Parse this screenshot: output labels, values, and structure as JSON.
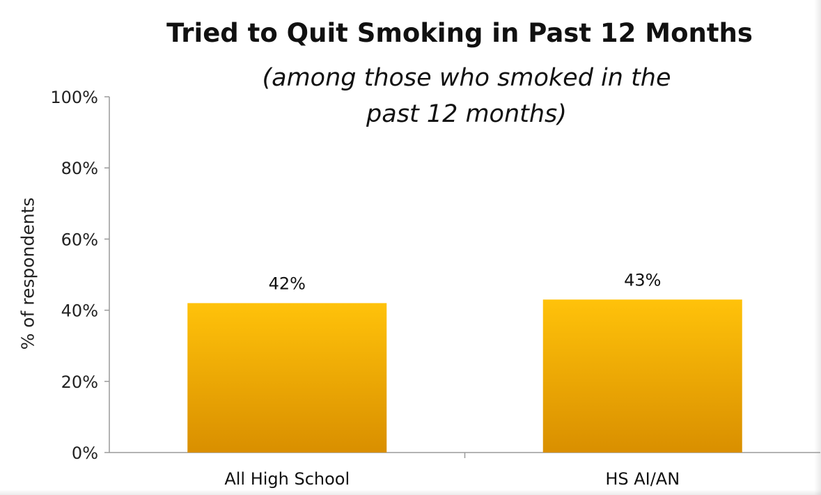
{
  "chart_data": {
    "type": "bar",
    "title": "Tried to Quit Smoking in Past 12 Months",
    "subtitle": "(among those who smoked in the past 12 months)",
    "xlabel": "",
    "ylabel": "% of respondents",
    "categories": [
      "All High School",
      "HS AI/AN"
    ],
    "values": [
      42,
      43
    ],
    "value_labels": [
      "42%",
      "43%"
    ],
    "ylim": [
      0,
      100
    ],
    "yticks": [
      0,
      20,
      40,
      60,
      80,
      100
    ],
    "ytick_labels": [
      "0%",
      "20%",
      "40%",
      "60%",
      "80%",
      "100%"
    ],
    "grid": false,
    "legend": "none",
    "colors": {
      "bar_top": "#FFC20A",
      "bar_bottom": "#D98F00",
      "axis": "#9a9a9a"
    }
  }
}
